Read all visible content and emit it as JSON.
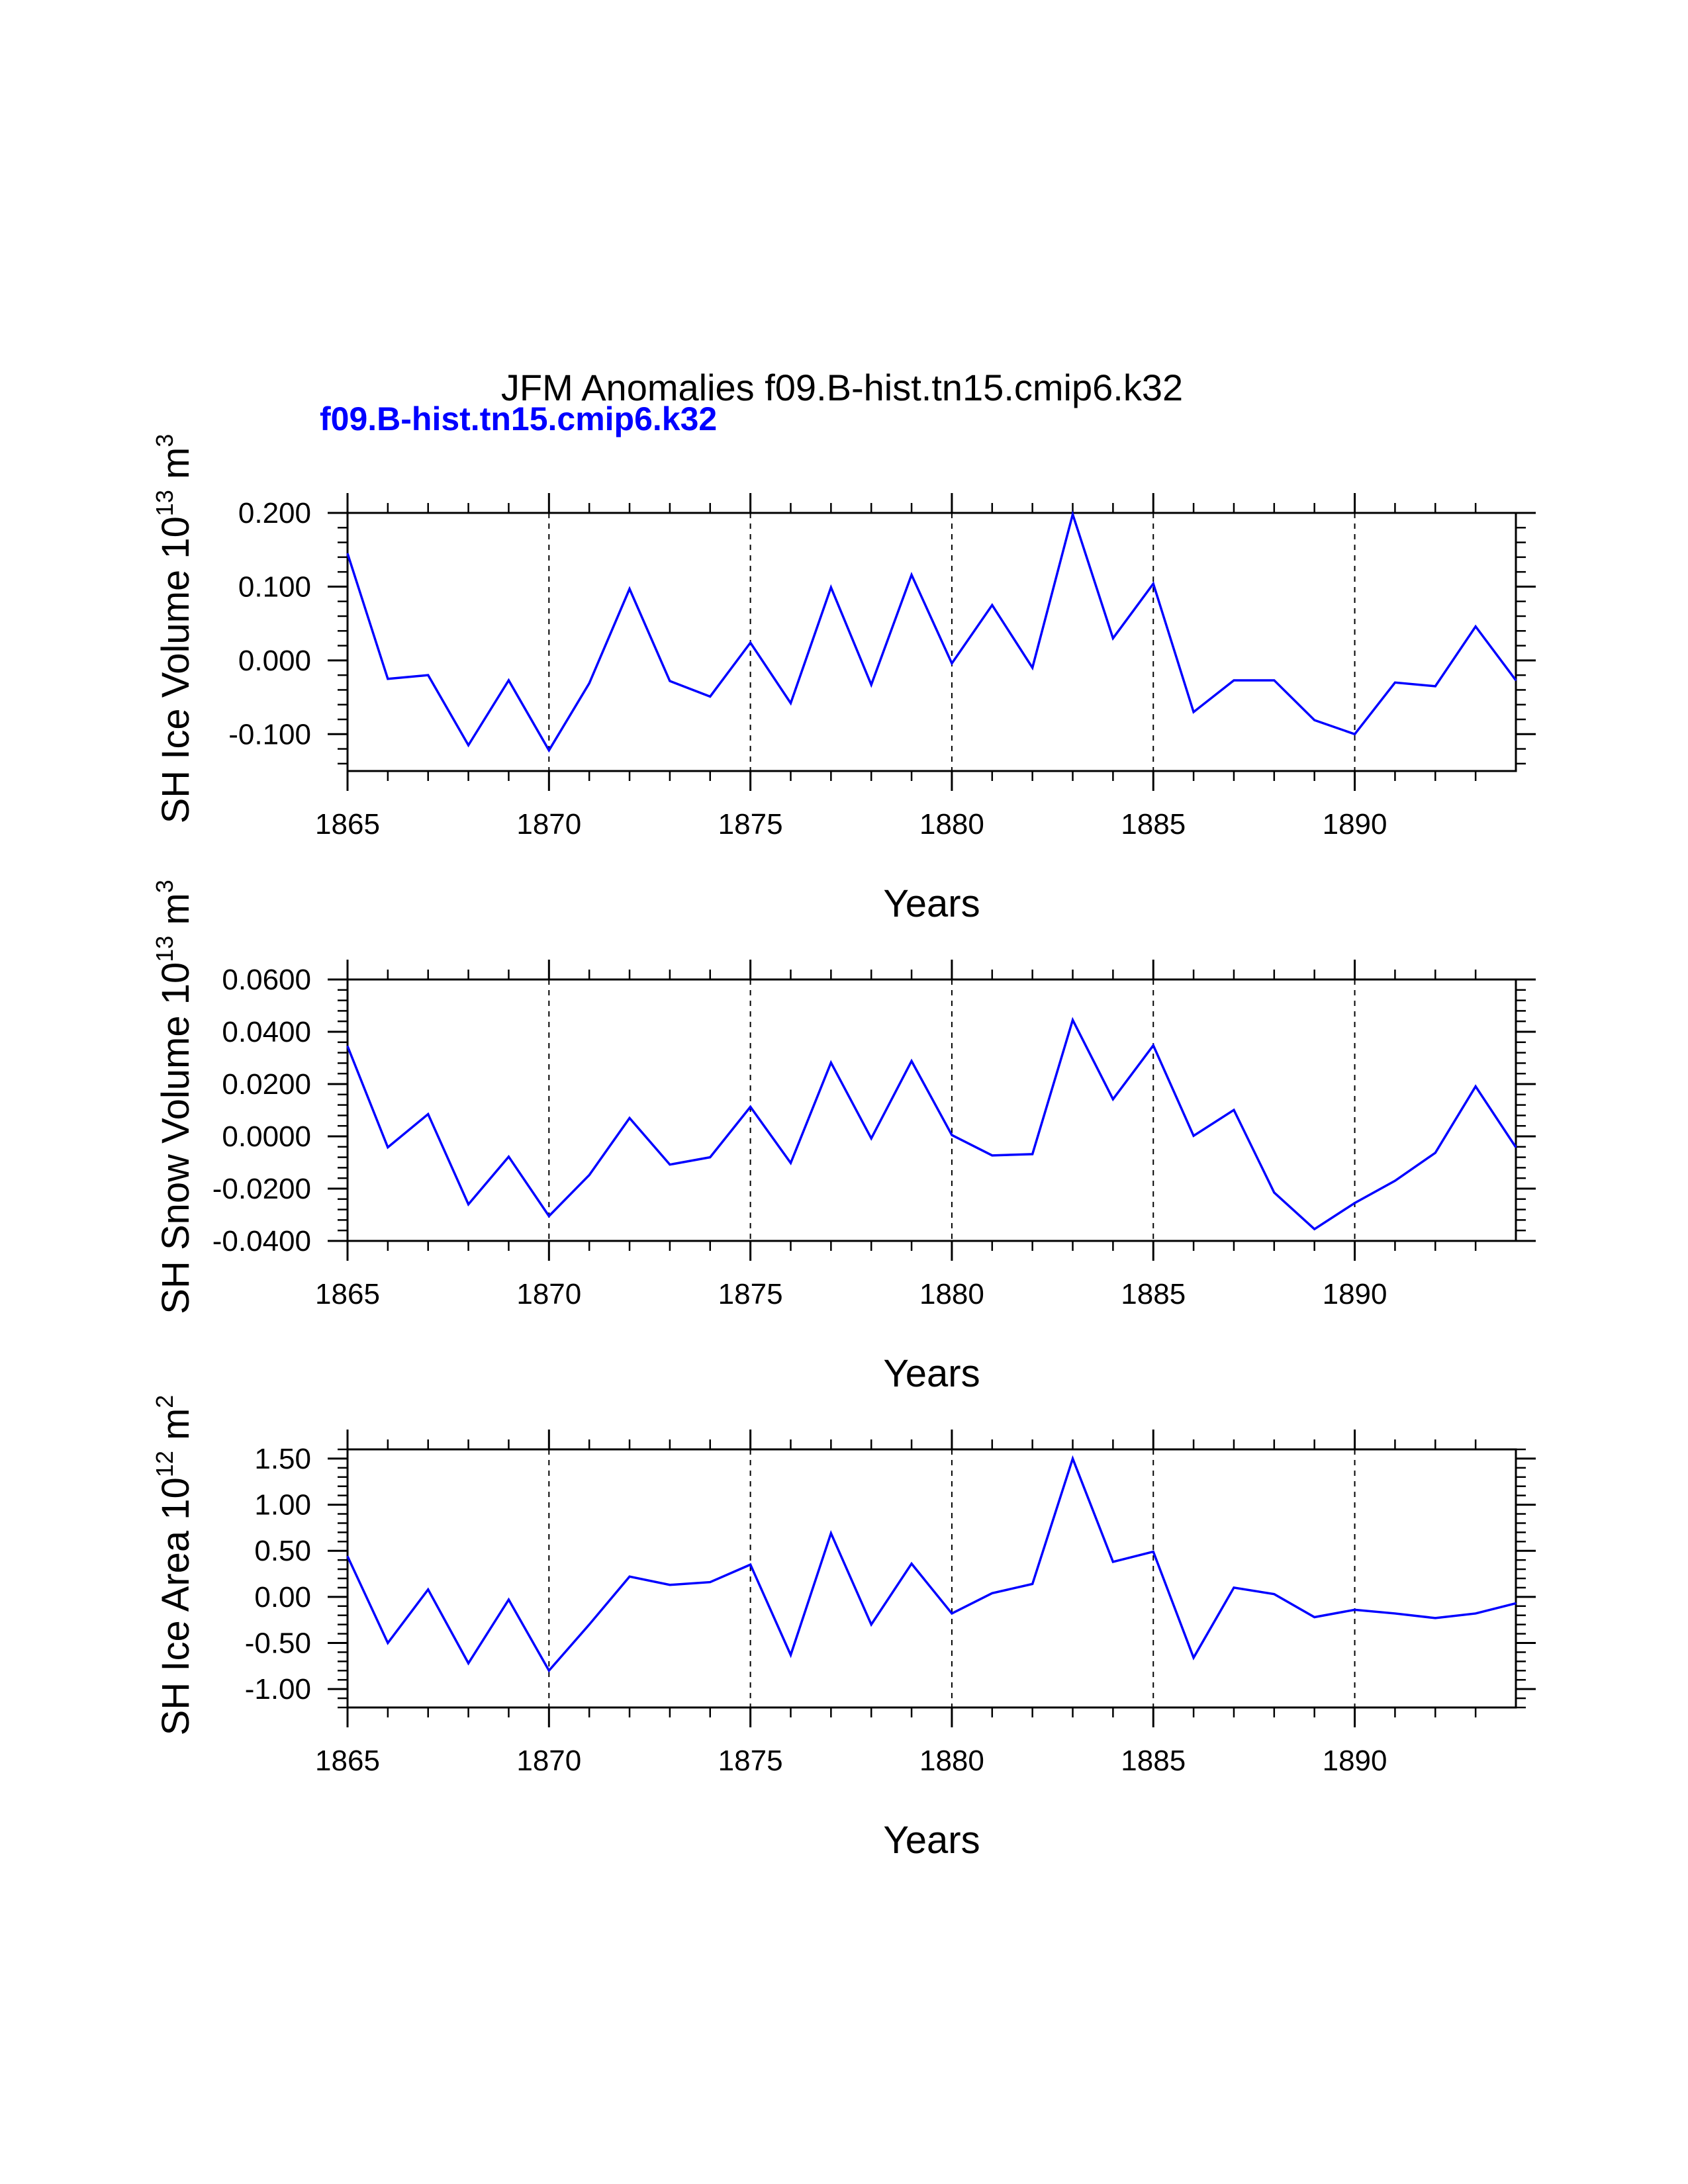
{
  "main_title": "JFM Anomalies f09.B-hist.tn15.cmip6.k32",
  "case_label": "f09.B-hist.tn15.cmip6.k32",
  "colors": {
    "series": "#0000ff",
    "axis": "#000000",
    "case_label": "#0000ff"
  },
  "chart_data": [
    {
      "type": "line",
      "ylabel": "SH Ice Volume 10",
      "ylabel_exp": "13",
      "ylabel_unit": " m",
      "ylabel_unit_exp": "3",
      "xlabel": "Years",
      "xlim": [
        1865,
        1894
      ],
      "ylim": [
        -0.15,
        0.2
      ],
      "xticks": [
        1865,
        1870,
        1875,
        1880,
        1885,
        1890
      ],
      "xtick_labels": [
        "1865",
        "1870",
        "1875",
        "1880",
        "1885",
        "1890"
      ],
      "yticks": [
        0.2,
        0.1,
        0.0,
        -0.1
      ],
      "ytick_labels": [
        "0.200",
        "0.100",
        "0.000",
        "-0.100"
      ],
      "yminor_step": 0.02,
      "grid_x": [
        1870,
        1875,
        1880,
        1885,
        1890
      ],
      "series": [
        {
          "name": "f09.B-hist.tn15.cmip6.k32",
          "x": [
            1865,
            1866,
            1867,
            1868,
            1869,
            1870,
            1871,
            1872,
            1873,
            1874,
            1875,
            1876,
            1877,
            1878,
            1879,
            1880,
            1881,
            1882,
            1883,
            1884,
            1885,
            1886,
            1887,
            1888,
            1889,
            1890,
            1891,
            1892,
            1893,
            1894
          ],
          "values": [
            0.145,
            -0.025,
            -0.02,
            -0.115,
            -0.027,
            -0.122,
            -0.031,
            0.097,
            -0.028,
            -0.049,
            0.024,
            -0.058,
            0.099,
            -0.033,
            0.116,
            -0.004,
            0.075,
            -0.01,
            0.198,
            0.03,
            0.104,
            -0.07,
            -0.027,
            -0.027,
            -0.081,
            -0.1,
            -0.03,
            -0.035,
            0.046,
            -0.027
          ]
        }
      ]
    },
    {
      "type": "line",
      "ylabel": "SH Snow Volume 10",
      "ylabel_exp": "13",
      "ylabel_unit": " m",
      "ylabel_unit_exp": "3",
      "xlabel": "Years",
      "xlim": [
        1865,
        1894
      ],
      "ylim": [
        -0.04,
        0.06
      ],
      "xticks": [
        1865,
        1870,
        1875,
        1880,
        1885,
        1890
      ],
      "xtick_labels": [
        "1865",
        "1870",
        "1875",
        "1880",
        "1885",
        "1890"
      ],
      "yticks": [
        0.06,
        0.04,
        0.02,
        0.0,
        -0.02,
        -0.04
      ],
      "ytick_labels": [
        "0.0600",
        "0.0400",
        "0.0200",
        "0.0000",
        "-0.0200",
        "-0.0400"
      ],
      "yminor_step": 0.004,
      "grid_x": [
        1870,
        1875,
        1880,
        1885,
        1890
      ],
      "series": [
        {
          "name": "f09.B-hist.tn15.cmip6.k32",
          "x": [
            1865,
            1866,
            1867,
            1868,
            1869,
            1870,
            1871,
            1872,
            1873,
            1874,
            1875,
            1876,
            1877,
            1878,
            1879,
            1880,
            1881,
            1882,
            1883,
            1884,
            1885,
            1886,
            1887,
            1888,
            1889,
            1890,
            1891,
            1892,
            1893,
            1894
          ],
          "values": [
            0.0345,
            -0.0042,
            0.0085,
            -0.026,
            -0.0078,
            -0.0305,
            -0.0148,
            0.007,
            -0.0108,
            -0.008,
            0.0113,
            -0.0102,
            0.0282,
            -0.0008,
            0.0288,
            0.0005,
            -0.0073,
            -0.0068,
            0.0445,
            0.0142,
            0.0348,
            0.0002,
            0.0101,
            -0.0215,
            -0.0355,
            -0.0255,
            -0.017,
            -0.0063,
            0.0191,
            -0.0042
          ]
        }
      ]
    },
    {
      "type": "line",
      "ylabel": "SH Ice Area 10",
      "ylabel_exp": "12",
      "ylabel_unit": " m",
      "ylabel_unit_exp": "2",
      "xlabel": "Years",
      "xlim": [
        1865,
        1894
      ],
      "ylim": [
        -1.2,
        1.6
      ],
      "xticks": [
        1865,
        1870,
        1875,
        1880,
        1885,
        1890
      ],
      "xtick_labels": [
        "1865",
        "1870",
        "1875",
        "1880",
        "1885",
        "1890"
      ],
      "yticks": [
        1.5,
        1.0,
        0.5,
        0.0,
        -0.5,
        -1.0
      ],
      "ytick_labels": [
        "1.50",
        "1.00",
        "0.50",
        "0.00",
        "-0.50",
        "-1.00"
      ],
      "yminor_step": 0.1,
      "grid_x": [
        1870,
        1875,
        1880,
        1885,
        1890
      ],
      "series": [
        {
          "name": "f09.B-hist.tn15.cmip6.k32",
          "x": [
            1865,
            1866,
            1867,
            1868,
            1869,
            1870,
            1871,
            1872,
            1873,
            1874,
            1875,
            1876,
            1877,
            1878,
            1879,
            1880,
            1881,
            1882,
            1883,
            1884,
            1885,
            1886,
            1887,
            1888,
            1889,
            1890,
            1891,
            1892,
            1893,
            1894
          ],
          "values": [
            0.44,
            -0.5,
            0.08,
            -0.72,
            -0.03,
            -0.8,
            -0.3,
            0.22,
            0.13,
            0.16,
            0.35,
            -0.63,
            0.69,
            -0.3,
            0.36,
            -0.18,
            0.04,
            0.14,
            1.5,
            0.38,
            0.49,
            -0.66,
            0.1,
            0.03,
            -0.22,
            -0.14,
            -0.18,
            -0.23,
            -0.18,
            -0.07
          ]
        }
      ]
    }
  ]
}
